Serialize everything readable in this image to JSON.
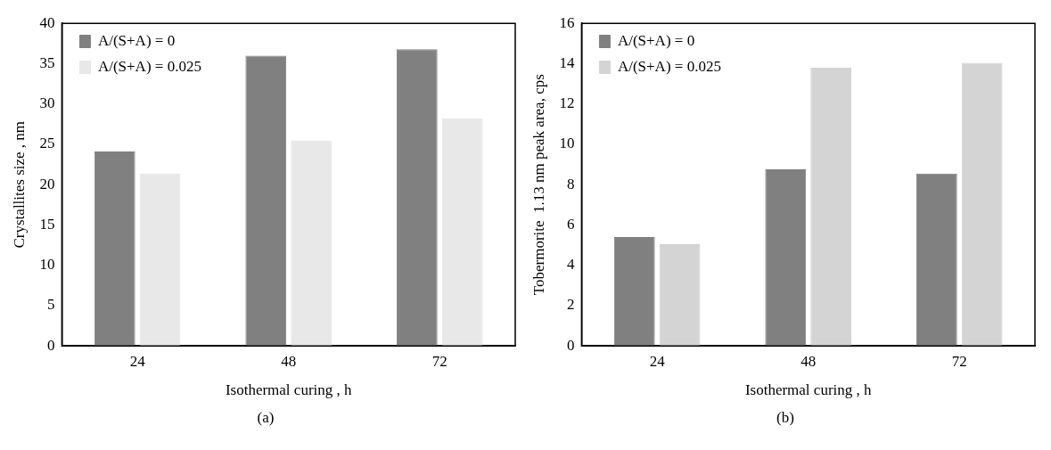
{
  "chart_data": [
    {
      "type": "bar",
      "xlabel": "Isothermal curing , h",
      "ylabel": "Crystallites size , nm",
      "categories": [
        "24",
        "48",
        "72"
      ],
      "series": [
        {
          "name": "A/(S+A) = 0",
          "color": "#808080",
          "values": [
            24.1,
            36.0,
            36.8
          ]
        },
        {
          "name": "A/(S+A) = 0.025",
          "color": "#e8e8e8",
          "values": [
            21.4,
            25.5,
            28.2
          ]
        }
      ],
      "ylim": [
        0,
        40
      ],
      "yticks": [
        0,
        5,
        10,
        15,
        20,
        25,
        30,
        35,
        40
      ],
      "grid": false,
      "legend": "top left",
      "annotations": [
        "(a)"
      ]
    },
    {
      "type": "bar",
      "xlabel": "Isothermal curing , h",
      "ylabel": "Tobermorite  1.13 nm peak area, cps",
      "categories": [
        "24",
        "48",
        "72"
      ],
      "series": [
        {
          "name": "A/(S+A) = 0",
          "color": "#808080",
          "values": [
            5.4,
            8.76,
            8.55
          ]
        },
        {
          "name": "A/(S+A) = 0.025",
          "color": "#d4d4d4",
          "values": [
            5.05,
            13.8,
            14.04
          ]
        }
      ],
      "ylim": [
        0,
        16
      ],
      "yticks": [
        0,
        2,
        4,
        6,
        8,
        10,
        12,
        14,
        16
      ],
      "grid": false,
      "legend": "top left",
      "annotations": [
        "(b)"
      ]
    }
  ]
}
